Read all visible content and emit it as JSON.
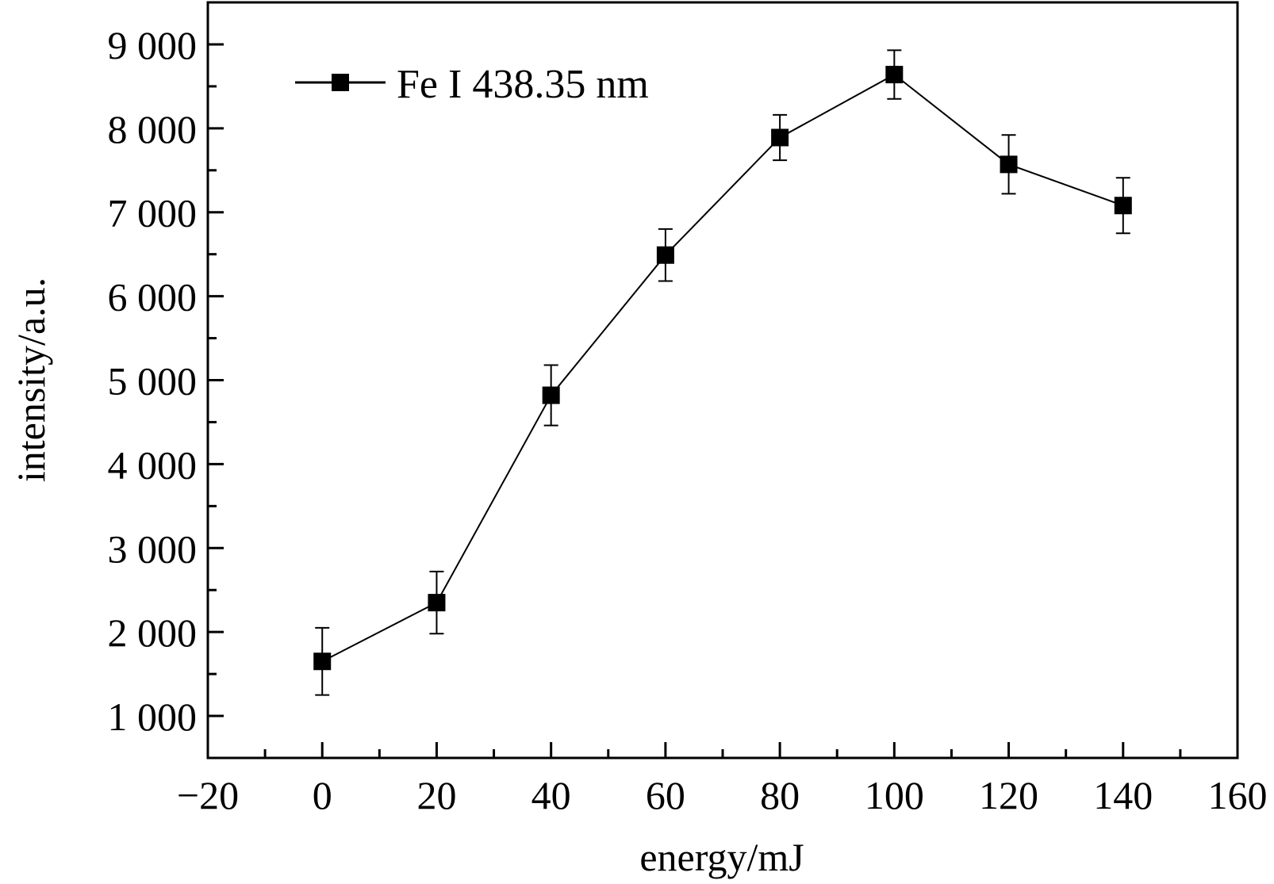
{
  "chart_data": {
    "type": "line",
    "title": "",
    "xlabel": "energy/mJ",
    "ylabel": "intensity/a.u.",
    "xlim": [
      -20,
      160
    ],
    "ylim": [
      500,
      9500
    ],
    "x_ticks": [
      -20,
      0,
      20,
      40,
      60,
      80,
      100,
      120,
      140,
      160
    ],
    "x_tick_labels": [
      "−20",
      "0",
      "20",
      "40",
      "60",
      "80",
      "100",
      "120",
      "140",
      "160"
    ],
    "y_ticks": [
      1000,
      2000,
      3000,
      4000,
      5000,
      6000,
      7000,
      8000,
      9000
    ],
    "y_tick_labels": [
      "1 000",
      "2 000",
      "3 000",
      "4 000",
      "5 000",
      "6 000",
      "7 000",
      "8 000",
      "9 000"
    ],
    "grid": false,
    "legend_position": "top-left",
    "series": [
      {
        "name": "Fe I 438.35 nm",
        "color": "#000000",
        "marker": "square",
        "x": [
          0,
          20,
          40,
          60,
          80,
          100,
          120,
          140
        ],
        "y": [
          1650,
          2350,
          4820,
          6490,
          7890,
          8640,
          7570,
          7080
        ],
        "error": [
          400,
          370,
          360,
          310,
          270,
          290,
          350,
          330
        ]
      }
    ]
  }
}
